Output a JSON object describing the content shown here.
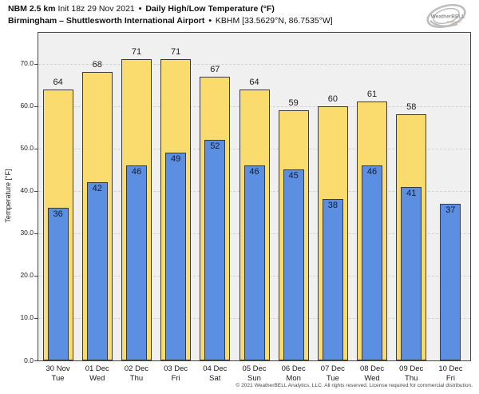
{
  "header": {
    "model": "NBM 2.5 km",
    "init": "Init 18z 29 Nov 2021",
    "sep1": "•",
    "product": "Daily High/Low Temperature (°F)",
    "station": "Birmingham – Shuttlesworth International Airport",
    "sep2": "•",
    "station_id": "KBHM [33.5629°N, 86.7535°W]"
  },
  "logo": {
    "name": "WeatherBELL",
    "subtext": "Analytics LLC"
  },
  "chart_data": {
    "type": "bar",
    "title": "NBM 2.5 km Init 18z 29 Nov 2021 • Daily High/Low Temperature (°F)",
    "subtitle": "Birmingham – Shuttlesworth International Airport • KBHM [33.5629°N, 86.7535°W]",
    "categories": [
      {
        "date": "30 Nov",
        "day": "Tue"
      },
      {
        "date": "01 Dec",
        "day": "Wed"
      },
      {
        "date": "02 Dec",
        "day": "Thu"
      },
      {
        "date": "03 Dec",
        "day": "Fri"
      },
      {
        "date": "04 Dec",
        "day": "Sat"
      },
      {
        "date": "05 Dec",
        "day": "Sun"
      },
      {
        "date": "06 Dec",
        "day": "Mon"
      },
      {
        "date": "07 Dec",
        "day": "Tue"
      },
      {
        "date": "08 Dec",
        "day": "Wed"
      },
      {
        "date": "09 Dec",
        "day": "Thu"
      },
      {
        "date": "10 Dec",
        "day": "Fri"
      }
    ],
    "series": [
      {
        "name": "Daily High",
        "color": "#fadb6d",
        "values": [
          64,
          68,
          71,
          71,
          67,
          64,
          59,
          60,
          61,
          58,
          null
        ]
      },
      {
        "name": "Daily Low",
        "color": "#5c8ee2",
        "values": [
          36,
          42,
          46,
          49,
          52,
          46,
          45,
          38,
          46,
          41,
          37
        ]
      }
    ],
    "ylabel": "Temperature [°F]",
    "xlabel": "",
    "ylim": [
      0,
      77.3
    ],
    "yticks": [
      0,
      10,
      20,
      30,
      40,
      50,
      60,
      70
    ],
    "ytick_labels": [
      "0.0",
      "10.0",
      "20.0",
      "30.0",
      "40.0",
      "50.0",
      "60.0",
      "70.0"
    ],
    "grid": true,
    "legend_position": "none",
    "plot_bg": "#f0f0f0"
  },
  "footer": {
    "copyright": "© 2021 WeatherBELL Analytics, LLC. All rights reserved. License required for commercial distribution."
  }
}
